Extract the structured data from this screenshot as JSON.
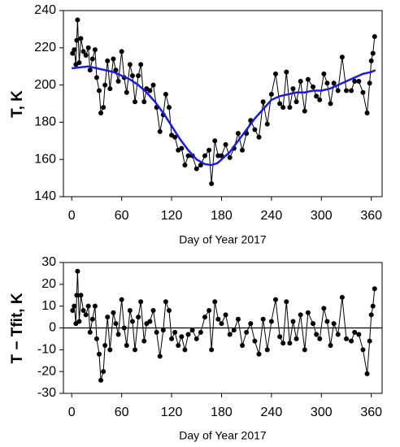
{
  "chart_data": [
    {
      "type": "line",
      "xlabel": "Day of Year 2017",
      "ylabel": "T, K",
      "xlim": [
        -10,
        373
      ],
      "xticks": [
        0,
        60,
        120,
        180,
        240,
        300,
        360
      ],
      "ylim": [
        140,
        240
      ],
      "yticks": [
        140,
        160,
        180,
        200,
        220,
        240
      ],
      "series": [
        {
          "color": "#000000",
          "marker": true,
          "x": [
            1,
            3,
            5,
            6,
            7,
            9,
            11,
            14,
            17,
            20,
            22,
            25,
            28,
            30,
            33,
            35,
            38,
            40,
            43,
            46,
            50,
            53,
            56,
            60,
            63,
            66,
            70,
            73,
            76,
            80,
            83,
            87,
            90,
            94,
            98,
            102,
            106,
            110,
            113,
            117,
            120,
            124,
            128,
            132,
            136,
            140,
            145,
            150,
            155,
            160,
            165,
            168,
            172,
            176,
            180,
            185,
            190,
            195,
            200,
            205,
            210,
            215,
            220,
            225,
            230,
            235,
            240,
            245,
            250,
            254,
            258,
            262,
            266,
            270,
            275,
            280,
            284,
            290,
            294,
            298,
            303,
            307,
            311,
            315,
            320,
            325,
            330,
            336,
            340,
            345,
            350,
            355,
            358,
            360,
            362,
            364
          ],
          "values": [
            217,
            219,
            211,
            224,
            235,
            212,
            225,
            218,
            216,
            220,
            208,
            214,
            219,
            204,
            197,
            185,
            188,
            200,
            213,
            198,
            214,
            208,
            202,
            218,
            204,
            196,
            211,
            205,
            191,
            205,
            211,
            191,
            198,
            197,
            200,
            188,
            175,
            184,
            195,
            188,
            173,
            172,
            165,
            166,
            157,
            162,
            162,
            155,
            157,
            162,
            165,
            147,
            170,
            162,
            162,
            168,
            161,
            166,
            174,
            165,
            174,
            181,
            176,
            172,
            191,
            179,
            195,
            206,
            190,
            188,
            207,
            188,
            198,
            191,
            202,
            186,
            203,
            199,
            194,
            192,
            206,
            201,
            190,
            201,
            197,
            215,
            197,
            197,
            202,
            202,
            196,
            185,
            201,
            213,
            217,
            226
          ]
        },
        {
          "color": "#1a1ae6",
          "marker": false,
          "x": [
            0,
            10,
            20,
            30,
            40,
            50,
            60,
            70,
            80,
            90,
            100,
            110,
            120,
            130,
            140,
            150,
            160,
            168,
            175,
            180,
            190,
            200,
            210,
            220,
            230,
            240,
            250,
            260,
            270,
            280,
            290,
            300,
            310,
            320,
            330,
            340,
            350,
            360,
            365
          ],
          "values": [
            209,
            209.5,
            210,
            209,
            208,
            207,
            205,
            203,
            200,
            196,
            191,
            185,
            178,
            171,
            165,
            160,
            157.5,
            157,
            158,
            160,
            164,
            170,
            176,
            182,
            187,
            192,
            194,
            195,
            196,
            196,
            197,
            197,
            198,
            200,
            202,
            204,
            206,
            207,
            208
          ]
        }
      ]
    },
    {
      "type": "line",
      "xlabel": "Day of Year 2017",
      "ylabel": "T − Tfit, K",
      "xlim": [
        -10,
        373
      ],
      "xticks": [
        0,
        60,
        120,
        180,
        240,
        300,
        360
      ],
      "ylim": [
        -30,
        30
      ],
      "yticks": [
        -30,
        -20,
        -10,
        0,
        10,
        20,
        30
      ],
      "reference_line": 0,
      "series": [
        {
          "color": "#000000",
          "marker": true,
          "x": [
            1,
            3,
            5,
            6,
            7,
            9,
            11,
            14,
            17,
            20,
            22,
            25,
            28,
            30,
            33,
            35,
            38,
            40,
            43,
            46,
            50,
            53,
            56,
            60,
            63,
            66,
            70,
            73,
            76,
            80,
            83,
            87,
            90,
            94,
            98,
            102,
            106,
            110,
            113,
            117,
            120,
            124,
            128,
            132,
            136,
            140,
            145,
            150,
            155,
            160,
            165,
            168,
            172,
            176,
            180,
            185,
            190,
            195,
            200,
            205,
            210,
            215,
            220,
            225,
            230,
            235,
            240,
            245,
            250,
            254,
            258,
            262,
            266,
            270,
            275,
            280,
            284,
            290,
            294,
            298,
            303,
            307,
            311,
            315,
            320,
            325,
            330,
            336,
            340,
            345,
            350,
            355,
            358,
            360,
            362,
            364
          ],
          "values": [
            8,
            10,
            2,
            15,
            26,
            3,
            15,
            8,
            6,
            10,
            -2,
            4,
            10,
            -5,
            -12,
            -24,
            -20,
            -8,
            5,
            -10,
            7,
            2,
            -3,
            13,
            0,
            -8,
            8,
            3,
            -10,
            5,
            12,
            -6,
            2,
            3,
            8,
            -2,
            -13,
            -1,
            12,
            8,
            -5,
            -2,
            -8,
            -4,
            -10,
            -3,
            -1,
            -5,
            -2,
            5,
            8,
            -10,
            12,
            4,
            2,
            6,
            -3,
            -1,
            4,
            -8,
            -2,
            2,
            -6,
            -12,
            4,
            -10,
            3,
            13,
            -4,
            -7,
            12,
            -7,
            3,
            -5,
            6,
            -10,
            7,
            2,
            -3,
            -5,
            9,
            3,
            -8,
            2,
            -3,
            14,
            -5,
            -6,
            -2,
            -3,
            -10,
            -21,
            -6,
            6,
            10,
            18
          ]
        }
      ]
    }
  ]
}
